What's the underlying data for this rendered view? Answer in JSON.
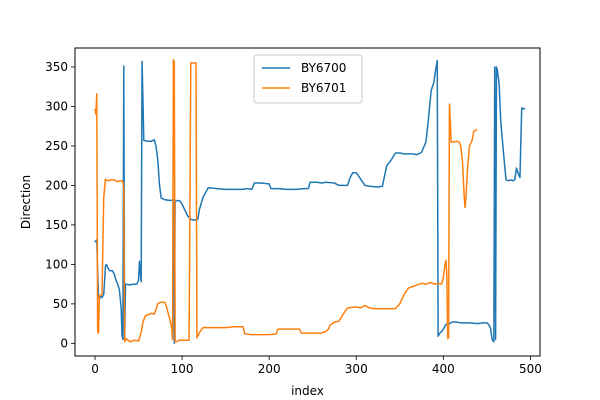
{
  "chart_data": {
    "type": "line",
    "title": "",
    "xlabel": "index",
    "ylabel": "Direction",
    "xlim": [
      -23,
      511
    ],
    "ylim": [
      -16,
      374
    ],
    "xticks": [
      0,
      100,
      200,
      300,
      400,
      500
    ],
    "yticks": [
      0,
      50,
      100,
      150,
      200,
      250,
      300,
      350
    ],
    "grid": false,
    "legend": "upper center",
    "series": [
      {
        "name": "BY6700",
        "color": "#1f77b4",
        "points": [
          [
            0,
            128
          ],
          [
            1,
            130
          ],
          [
            2,
            131
          ],
          [
            3,
            90
          ],
          [
            4,
            60
          ],
          [
            5,
            55
          ],
          [
            6,
            60
          ],
          [
            8,
            58
          ],
          [
            10,
            62
          ],
          [
            12,
            98
          ],
          [
            13,
            100
          ],
          [
            15,
            95
          ],
          [
            17,
            92
          ],
          [
            20,
            92
          ],
          [
            22,
            88
          ],
          [
            24,
            80
          ],
          [
            26,
            75
          ],
          [
            28,
            68
          ],
          [
            30,
            45
          ],
          [
            31,
            10
          ],
          [
            32,
            5
          ],
          [
            33,
            351
          ],
          [
            34,
            5
          ],
          [
            35,
            75
          ],
          [
            40,
            74
          ],
          [
            45,
            75
          ],
          [
            48,
            75
          ],
          [
            50,
            80
          ],
          [
            51,
            104
          ],
          [
            52,
            90
          ],
          [
            53,
            78
          ],
          [
            54,
            357
          ],
          [
            55,
            310
          ],
          [
            56,
            257
          ],
          [
            60,
            256
          ],
          [
            65,
            256
          ],
          [
            68,
            258
          ],
          [
            70,
            250
          ],
          [
            72,
            233
          ],
          [
            74,
            201
          ],
          [
            76,
            184
          ],
          [
            80,
            182
          ],
          [
            85,
            181
          ],
          [
            88,
            181
          ],
          [
            90,
            182
          ],
          [
            91,
            0
          ],
          [
            92,
            180
          ],
          [
            95,
            181
          ],
          [
            98,
            180
          ],
          [
            100,
            176
          ],
          [
            104,
            167
          ],
          [
            106,
            162
          ],
          [
            110,
            157
          ],
          [
            115,
            156
          ],
          [
            118,
            157
          ],
          [
            120,
            170
          ],
          [
            124,
            185
          ],
          [
            128,
            193
          ],
          [
            130,
            197
          ],
          [
            140,
            196
          ],
          [
            150,
            195
          ],
          [
            170,
            195
          ],
          [
            175,
            196
          ],
          [
            180,
            195
          ],
          [
            183,
            203
          ],
          [
            190,
            203
          ],
          [
            200,
            202
          ],
          [
            202,
            196
          ],
          [
            210,
            196
          ],
          [
            220,
            195
          ],
          [
            230,
            195
          ],
          [
            240,
            196
          ],
          [
            245,
            196
          ],
          [
            247,
            204
          ],
          [
            255,
            204
          ],
          [
            260,
            203
          ],
          [
            265,
            204
          ],
          [
            275,
            203
          ],
          [
            280,
            200
          ],
          [
            285,
            200
          ],
          [
            290,
            200
          ],
          [
            293,
            210
          ],
          [
            296,
            216
          ],
          [
            300,
            216
          ],
          [
            302,
            213
          ],
          [
            305,
            208
          ],
          [
            310,
            200
          ],
          [
            315,
            199
          ],
          [
            325,
            198
          ],
          [
            330,
            199
          ],
          [
            335,
            225
          ],
          [
            340,
            232
          ],
          [
            345,
            241
          ],
          [
            350,
            241
          ],
          [
            355,
            240
          ],
          [
            365,
            240
          ],
          [
            370,
            239
          ],
          [
            375,
            242
          ],
          [
            380,
            255
          ],
          [
            383,
            285
          ],
          [
            386,
            320
          ],
          [
            389,
            330
          ],
          [
            391,
            345
          ],
          [
            393,
            358
          ],
          [
            394,
            9
          ],
          [
            396,
            13
          ],
          [
            398,
            15
          ],
          [
            400,
            18
          ],
          [
            403,
            24
          ],
          [
            406,
            24
          ],
          [
            410,
            27
          ],
          [
            415,
            27
          ],
          [
            420,
            26
          ],
          [
            430,
            26
          ],
          [
            440,
            25
          ],
          [
            445,
            26
          ],
          [
            450,
            26
          ],
          [
            452,
            24
          ],
          [
            454,
            20
          ],
          [
            456,
            5
          ],
          [
            458,
            2
          ],
          [
            459,
            350
          ],
          [
            460,
            5
          ],
          [
            461,
            350
          ],
          [
            462,
            346
          ],
          [
            464,
            330
          ],
          [
            466,
            280
          ],
          [
            468,
            255
          ],
          [
            470,
            230
          ],
          [
            472,
            207
          ],
          [
            475,
            206
          ],
          [
            478,
            207
          ],
          [
            480,
            206
          ],
          [
            482,
            207
          ],
          [
            484,
            222
          ],
          [
            486,
            215
          ],
          [
            488,
            210
          ],
          [
            489,
            255
          ],
          [
            490,
            298
          ],
          [
            493,
            297
          ],
          [
            494,
            297
          ]
        ]
      },
      {
        "name": "BY6701",
        "color": "#ff7f0e",
        "points": [
          [
            0,
            297
          ],
          [
            1,
            290
          ],
          [
            2,
            316
          ],
          [
            3,
            15
          ],
          [
            4,
            13
          ],
          [
            5,
            60
          ],
          [
            8,
            62
          ],
          [
            10,
            185
          ],
          [
            12,
            208
          ],
          [
            14,
            206
          ],
          [
            16,
            206
          ],
          [
            18,
            207
          ],
          [
            22,
            207
          ],
          [
            25,
            205
          ],
          [
            30,
            206
          ],
          [
            32,
            205
          ],
          [
            33,
            195
          ],
          [
            34,
            2
          ],
          [
            36,
            6
          ],
          [
            40,
            2
          ],
          [
            45,
            4
          ],
          [
            50,
            3
          ],
          [
            53,
            14
          ],
          [
            55,
            27
          ],
          [
            58,
            35
          ],
          [
            62,
            37
          ],
          [
            65,
            38
          ],
          [
            68,
            37
          ],
          [
            70,
            43
          ],
          [
            72,
            50
          ],
          [
            75,
            52
          ],
          [
            80,
            52
          ],
          [
            82,
            47
          ],
          [
            84,
            38
          ],
          [
            86,
            30
          ],
          [
            88,
            20
          ],
          [
            89,
            5
          ],
          [
            90,
            359
          ],
          [
            91,
            357
          ],
          [
            92,
            2
          ],
          [
            94,
            2
          ],
          [
            96,
            4
          ],
          [
            100,
            4
          ],
          [
            105,
            4
          ],
          [
            108,
            4
          ],
          [
            110,
            355
          ],
          [
            113,
            355
          ],
          [
            116,
            355
          ],
          [
            117,
            7
          ],
          [
            120,
            14
          ],
          [
            124,
            20
          ],
          [
            130,
            20
          ],
          [
            140,
            20
          ],
          [
            150,
            20
          ],
          [
            160,
            21
          ],
          [
            170,
            21
          ],
          [
            172,
            12
          ],
          [
            180,
            11
          ],
          [
            190,
            11
          ],
          [
            200,
            11
          ],
          [
            208,
            12
          ],
          [
            210,
            18
          ],
          [
            220,
            18
          ],
          [
            230,
            18
          ],
          [
            235,
            18
          ],
          [
            237,
            13
          ],
          [
            250,
            13
          ],
          [
            260,
            13
          ],
          [
            265,
            15
          ],
          [
            268,
            18
          ],
          [
            270,
            23
          ],
          [
            275,
            27
          ],
          [
            280,
            28
          ],
          [
            285,
            37
          ],
          [
            290,
            45
          ],
          [
            300,
            46
          ],
          [
            305,
            45
          ],
          [
            310,
            48
          ],
          [
            315,
            45
          ],
          [
            320,
            44
          ],
          [
            330,
            44
          ],
          [
            340,
            44
          ],
          [
            345,
            44
          ],
          [
            350,
            50
          ],
          [
            355,
            62
          ],
          [
            360,
            70
          ],
          [
            365,
            72
          ],
          [
            370,
            74
          ],
          [
            375,
            76
          ],
          [
            380,
            75
          ],
          [
            385,
            77
          ],
          [
            390,
            75
          ],
          [
            395,
            76
          ],
          [
            398,
            75
          ],
          [
            400,
            83
          ],
          [
            402,
            100
          ],
          [
            403,
            105
          ],
          [
            404,
            88
          ],
          [
            405,
            6
          ],
          [
            406,
            7
          ],
          [
            407,
            303
          ],
          [
            409,
            255
          ],
          [
            412,
            255
          ],
          [
            415,
            256
          ],
          [
            418,
            255
          ],
          [
            420,
            250
          ],
          [
            422,
            230
          ],
          [
            424,
            185
          ],
          [
            425,
            172
          ],
          [
            426,
            185
          ],
          [
            428,
            225
          ],
          [
            430,
            250
          ],
          [
            433,
            257
          ],
          [
            435,
            268
          ],
          [
            437,
            270
          ],
          [
            439,
            271
          ]
        ]
      }
    ]
  }
}
